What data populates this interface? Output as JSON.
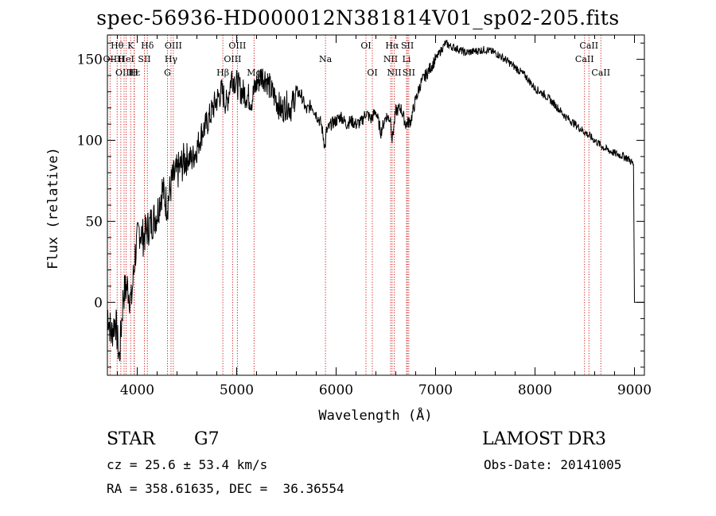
{
  "chart_data": {
    "type": "line",
    "title": "spec-56936-HD000012N381814V01_sp02-205.fits",
    "xlabel": "Wavelength (Å)",
    "ylabel": "Flux (relative)",
    "xlim": [
      3700,
      9100
    ],
    "ylim": [
      -45,
      165
    ],
    "x_ticks": [
      4000,
      5000,
      6000,
      7000,
      8000,
      9000
    ],
    "y_ticks": [
      0,
      50,
      100,
      150
    ],
    "series": [
      {
        "name": "flux",
        "x": [
          3700,
          3740,
          3780,
          3820,
          3860,
          3900,
          3940,
          3980,
          4020,
          4060,
          4100,
          4150,
          4200,
          4250,
          4300,
          4350,
          4400,
          4450,
          4500,
          4550,
          4600,
          4650,
          4700,
          4750,
          4800,
          4850,
          4900,
          4950,
          5000,
          5050,
          5100,
          5150,
          5200,
          5250,
          5300,
          5350,
          5400,
          5450,
          5500,
          5550,
          5600,
          5650,
          5700,
          5750,
          5800,
          5850,
          5890,
          5900,
          5950,
          6000,
          6050,
          6100,
          6150,
          6200,
          6250,
          6300,
          6350,
          6400,
          6450,
          6500,
          6550,
          6563,
          6600,
          6650,
          6700,
          6750,
          6800,
          6850,
          6900,
          6950,
          7000,
          7050,
          7100,
          7150,
          7200,
          7300,
          7400,
          7500,
          7600,
          7700,
          7800,
          7900,
          8000,
          8100,
          8200,
          8300,
          8400,
          8500,
          8600,
          8700,
          8800,
          8900,
          8950,
          8990,
          9000
        ],
        "values": [
          -5,
          -20,
          -10,
          -35,
          5,
          10,
          0,
          30,
          45,
          40,
          45,
          50,
          55,
          70,
          60,
          75,
          80,
          85,
          90,
          88,
          95,
          105,
          110,
          118,
          125,
          130,
          122,
          140,
          135,
          130,
          128,
          125,
          135,
          140,
          138,
          130,
          125,
          118,
          122,
          120,
          130,
          128,
          118,
          122,
          116,
          110,
          95,
          105,
          110,
          112,
          115,
          110,
          112,
          110,
          111,
          117,
          113,
          118,
          105,
          115,
          113,
          100,
          118,
          120,
          110,
          112,
          125,
          135,
          140,
          145,
          150,
          155,
          160,
          158,
          157,
          154,
          155,
          156,
          154,
          150,
          145,
          140,
          132,
          128,
          122,
          115,
          110,
          105,
          100,
          95,
          92,
          90,
          88,
          85,
          0
        ]
      }
    ],
    "line_markers": [
      {
        "label": "Hθ",
        "wavelength": 3798,
        "row": 0
      },
      {
        "label": "K",
        "wavelength": 3934,
        "row": 0
      },
      {
        "label": "Hδ",
        "wavelength": 4102,
        "row": 0
      },
      {
        "label": "OIII",
        "wavelength": 4363,
        "row": 0
      },
      {
        "label": "OIII",
        "wavelength": 5007,
        "row": 0
      },
      {
        "label": "OI",
        "wavelength": 6300,
        "row": 0
      },
      {
        "label": "Hα",
        "wavelength": 6563,
        "row": 0
      },
      {
        "label": "SII",
        "wavelength": 6717,
        "row": 0
      },
      {
        "label": "CaII",
        "wavelength": 8542,
        "row": 0
      },
      {
        "label": "OII",
        "wavelength": 3727,
        "row": 1
      },
      {
        "label": "H",
        "wavelength": 3835,
        "row": 1
      },
      {
        "label": "HeI",
        "wavelength": 3889,
        "row": 1
      },
      {
        "label": "SII",
        "wavelength": 4072,
        "row": 1
      },
      {
        "label": "Hγ",
        "wavelength": 4340,
        "row": 1
      },
      {
        "label": "OIII",
        "wavelength": 4959,
        "row": 1
      },
      {
        "label": "Na",
        "wavelength": 5893,
        "row": 1
      },
      {
        "label": "NII",
        "wavelength": 6548,
        "row": 1
      },
      {
        "label": "Li",
        "wavelength": 6708,
        "row": 1
      },
      {
        "label": "CaII",
        "wavelength": 8498,
        "row": 1
      },
      {
        "label": "OIII",
        "wavelength": 3868,
        "row": 2
      },
      {
        "label": "Hε",
        "wavelength": 3970,
        "row": 2
      },
      {
        "label": "H",
        "wavelength": 3970,
        "row": 2
      },
      {
        "label": "G",
        "wavelength": 4304,
        "row": 2
      },
      {
        "label": "Hβ",
        "wavelength": 4861,
        "row": 2
      },
      {
        "label": "Mg",
        "wavelength": 5175,
        "row": 2
      },
      {
        "label": "OI",
        "wavelength": 6364,
        "row": 2
      },
      {
        "label": "NII",
        "wavelength": 6584,
        "row": 2
      },
      {
        "label": "SII",
        "wavelength": 6731,
        "row": 2
      },
      {
        "label": "CaII",
        "wavelength": 8662,
        "row": 2
      }
    ]
  },
  "info": {
    "class": "STAR",
    "subclass": "G7",
    "survey": "LAMOST DR3",
    "cz": "cz = 25.6 ± 53.4 km/s",
    "obs_date": "Obs-Date: 20141005",
    "coords": "RA = 358.61635, DEC =  36.36554"
  },
  "colors": {
    "line": "#000000",
    "marker": "#cc0000"
  }
}
